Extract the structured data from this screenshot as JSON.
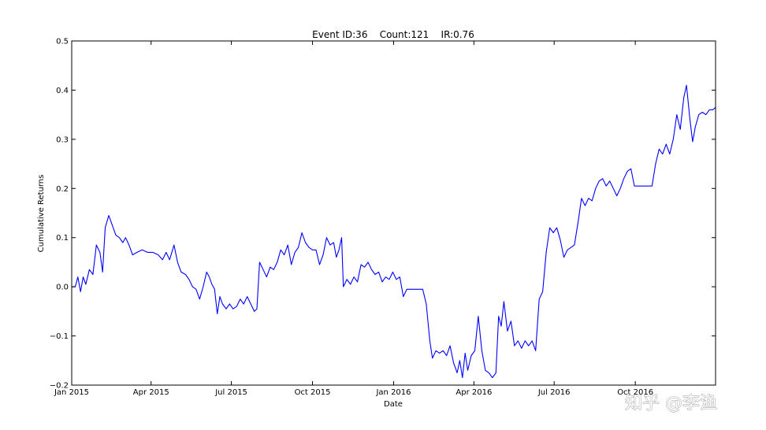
{
  "chart_data": {
    "type": "line",
    "title": "Event ID:36    Count:121    IR:0.76",
    "xlabel": "Date",
    "ylabel": "Cumulative Returns",
    "xlim": [
      "2015-01-01",
      "2016-12-31"
    ],
    "ylim": [
      -0.2,
      0.5
    ],
    "grid": false,
    "x_ticks": [
      {
        "date": "2015-01-01",
        "label": "Jan 2015"
      },
      {
        "date": "2015-04-01",
        "label": "Apr 2015"
      },
      {
        "date": "2015-07-01",
        "label": "Jul 2015"
      },
      {
        "date": "2015-10-01",
        "label": "Oct 2015"
      },
      {
        "date": "2016-01-01",
        "label": "Jan 2016"
      },
      {
        "date": "2016-04-01",
        "label": "Apr 2016"
      },
      {
        "date": "2016-07-01",
        "label": "Jul 2016"
      },
      {
        "date": "2016-10-01",
        "label": "Oct 2016"
      }
    ],
    "y_ticks": [
      {
        "value": -0.2,
        "label": "−0.2"
      },
      {
        "value": -0.1,
        "label": "−0.1"
      },
      {
        "value": 0.0,
        "label": "0.0"
      },
      {
        "value": 0.1,
        "label": "0.1"
      },
      {
        "value": 0.2,
        "label": "0.2"
      },
      {
        "value": 0.3,
        "label": "0.3"
      },
      {
        "value": 0.4,
        "label": "0.4"
      },
      {
        "value": 0.5,
        "label": "0.5"
      }
    ],
    "series": [
      {
        "color": "#0000ff",
        "points": [
          [
            "2015-01-01",
            0.0
          ],
          [
            "2015-01-05",
            0.0
          ],
          [
            "2015-01-08",
            0.02
          ],
          [
            "2015-01-11",
            -0.01
          ],
          [
            "2015-01-14",
            0.02
          ],
          [
            "2015-01-17",
            0.005
          ],
          [
            "2015-01-21",
            0.035
          ],
          [
            "2015-01-25",
            0.025
          ],
          [
            "2015-01-29",
            0.085
          ],
          [
            "2015-02-02",
            0.07
          ],
          [
            "2015-02-05",
            0.03
          ],
          [
            "2015-02-08",
            0.12
          ],
          [
            "2015-02-12",
            0.145
          ],
          [
            "2015-02-16",
            0.125
          ],
          [
            "2015-02-20",
            0.105
          ],
          [
            "2015-02-24",
            0.1
          ],
          [
            "2015-02-28",
            0.09
          ],
          [
            "2015-03-03",
            0.1
          ],
          [
            "2015-03-07",
            0.085
          ],
          [
            "2015-03-11",
            0.065
          ],
          [
            "2015-03-16",
            0.07
          ],
          [
            "2015-03-22",
            0.075
          ],
          [
            "2015-03-28",
            0.07
          ],
          [
            "2015-04-03",
            0.07
          ],
          [
            "2015-04-09",
            0.065
          ],
          [
            "2015-04-14",
            0.055
          ],
          [
            "2015-04-18",
            0.07
          ],
          [
            "2015-04-22",
            0.055
          ],
          [
            "2015-04-27",
            0.085
          ],
          [
            "2015-05-01",
            0.05
          ],
          [
            "2015-05-05",
            0.03
          ],
          [
            "2015-05-10",
            0.025
          ],
          [
            "2015-05-14",
            0.015
          ],
          [
            "2015-05-18",
            0.0
          ],
          [
            "2015-05-22",
            -0.005
          ],
          [
            "2015-05-26",
            -0.025
          ],
          [
            "2015-05-30",
            0.0
          ],
          [
            "2015-06-03",
            0.03
          ],
          [
            "2015-06-06",
            0.02
          ],
          [
            "2015-06-09",
            0.005
          ],
          [
            "2015-06-12",
            -0.005
          ],
          [
            "2015-06-15",
            -0.055
          ],
          [
            "2015-06-18",
            -0.02
          ],
          [
            "2015-06-21",
            -0.035
          ],
          [
            "2015-06-25",
            -0.045
          ],
          [
            "2015-06-29",
            -0.035
          ],
          [
            "2015-07-03",
            -0.045
          ],
          [
            "2015-07-07",
            -0.04
          ],
          [
            "2015-07-11",
            -0.025
          ],
          [
            "2015-07-15",
            -0.035
          ],
          [
            "2015-07-19",
            -0.02
          ],
          [
            "2015-07-23",
            -0.035
          ],
          [
            "2015-07-27",
            -0.05
          ],
          [
            "2015-07-30",
            -0.045
          ],
          [
            "2015-08-02",
            0.05
          ],
          [
            "2015-08-06",
            0.035
          ],
          [
            "2015-08-10",
            0.02
          ],
          [
            "2015-08-14",
            0.04
          ],
          [
            "2015-08-18",
            0.035
          ],
          [
            "2015-08-22",
            0.05
          ],
          [
            "2015-08-26",
            0.075
          ],
          [
            "2015-08-30",
            0.065
          ],
          [
            "2015-09-03",
            0.085
          ],
          [
            "2015-09-07",
            0.045
          ],
          [
            "2015-09-11",
            0.07
          ],
          [
            "2015-09-15",
            0.08
          ],
          [
            "2015-09-19",
            0.11
          ],
          [
            "2015-09-23",
            0.09
          ],
          [
            "2015-09-27",
            0.08
          ],
          [
            "2015-10-01",
            0.075
          ],
          [
            "2015-10-05",
            0.075
          ],
          [
            "2015-10-09",
            0.045
          ],
          [
            "2015-10-13",
            0.065
          ],
          [
            "2015-10-17",
            0.1
          ],
          [
            "2015-10-21",
            0.085
          ],
          [
            "2015-10-25",
            0.09
          ],
          [
            "2015-10-28",
            0.06
          ],
          [
            "2015-10-31",
            0.075
          ],
          [
            "2015-11-03",
            0.1
          ],
          [
            "2015-11-05",
            0.0
          ],
          [
            "2015-11-09",
            0.015
          ],
          [
            "2015-11-13",
            0.005
          ],
          [
            "2015-11-17",
            0.02
          ],
          [
            "2015-11-21",
            0.01
          ],
          [
            "2015-11-25",
            0.045
          ],
          [
            "2015-11-29",
            0.04
          ],
          [
            "2015-12-03",
            0.05
          ],
          [
            "2015-12-07",
            0.035
          ],
          [
            "2015-12-11",
            0.025
          ],
          [
            "2015-12-15",
            0.03
          ],
          [
            "2015-12-19",
            0.01
          ],
          [
            "2015-12-23",
            0.02
          ],
          [
            "2015-12-27",
            0.015
          ],
          [
            "2015-12-31",
            0.03
          ],
          [
            "2016-01-04",
            0.015
          ],
          [
            "2016-01-08",
            0.02
          ],
          [
            "2016-01-12",
            -0.02
          ],
          [
            "2016-01-16",
            -0.005
          ],
          [
            "2016-01-22",
            -0.005
          ],
          [
            "2016-01-28",
            -0.005
          ],
          [
            "2016-02-03",
            -0.005
          ],
          [
            "2016-02-07",
            -0.035
          ],
          [
            "2016-02-11",
            -0.11
          ],
          [
            "2016-02-14",
            -0.145
          ],
          [
            "2016-02-18",
            -0.13
          ],
          [
            "2016-02-22",
            -0.135
          ],
          [
            "2016-02-26",
            -0.13
          ],
          [
            "2016-03-01",
            -0.14
          ],
          [
            "2016-03-05",
            -0.12
          ],
          [
            "2016-03-09",
            -0.155
          ],
          [
            "2016-03-13",
            -0.175
          ],
          [
            "2016-03-16",
            -0.15
          ],
          [
            "2016-03-19",
            -0.185
          ],
          [
            "2016-03-22",
            -0.135
          ],
          [
            "2016-03-25",
            -0.17
          ],
          [
            "2016-03-29",
            -0.14
          ],
          [
            "2016-04-02",
            -0.13
          ],
          [
            "2016-04-06",
            -0.06
          ],
          [
            "2016-04-10",
            -0.13
          ],
          [
            "2016-04-14",
            -0.17
          ],
          [
            "2016-04-18",
            -0.175
          ],
          [
            "2016-04-22",
            -0.185
          ],
          [
            "2016-04-26",
            -0.175
          ],
          [
            "2016-04-29",
            -0.06
          ],
          [
            "2016-05-02",
            -0.08
          ],
          [
            "2016-05-05",
            -0.03
          ],
          [
            "2016-05-09",
            -0.09
          ],
          [
            "2016-05-13",
            -0.07
          ],
          [
            "2016-05-17",
            -0.12
          ],
          [
            "2016-05-21",
            -0.11
          ],
          [
            "2016-05-25",
            -0.125
          ],
          [
            "2016-05-29",
            -0.11
          ],
          [
            "2016-06-02",
            -0.12
          ],
          [
            "2016-06-06",
            -0.11
          ],
          [
            "2016-06-10",
            -0.13
          ],
          [
            "2016-06-14",
            -0.025
          ],
          [
            "2016-06-18",
            -0.01
          ],
          [
            "2016-06-22",
            0.07
          ],
          [
            "2016-06-26",
            0.12
          ],
          [
            "2016-06-30",
            0.11
          ],
          [
            "2016-07-04",
            0.12
          ],
          [
            "2016-07-08",
            0.095
          ],
          [
            "2016-07-12",
            0.06
          ],
          [
            "2016-07-16",
            0.075
          ],
          [
            "2016-07-20",
            0.08
          ],
          [
            "2016-07-24",
            0.085
          ],
          [
            "2016-07-28",
            0.13
          ],
          [
            "2016-08-01",
            0.18
          ],
          [
            "2016-08-05",
            0.165
          ],
          [
            "2016-08-09",
            0.18
          ],
          [
            "2016-08-13",
            0.175
          ],
          [
            "2016-08-17",
            0.2
          ],
          [
            "2016-08-21",
            0.215
          ],
          [
            "2016-08-25",
            0.22
          ],
          [
            "2016-08-29",
            0.205
          ],
          [
            "2016-09-02",
            0.215
          ],
          [
            "2016-09-06",
            0.2
          ],
          [
            "2016-09-10",
            0.185
          ],
          [
            "2016-09-14",
            0.2
          ],
          [
            "2016-09-18",
            0.22
          ],
          [
            "2016-09-22",
            0.235
          ],
          [
            "2016-09-26",
            0.24
          ],
          [
            "2016-09-30",
            0.205
          ],
          [
            "2016-10-04",
            0.205
          ],
          [
            "2016-10-10",
            0.205
          ],
          [
            "2016-10-16",
            0.205
          ],
          [
            "2016-10-20",
            0.205
          ],
          [
            "2016-10-24",
            0.25
          ],
          [
            "2016-10-28",
            0.28
          ],
          [
            "2016-11-01",
            0.27
          ],
          [
            "2016-11-05",
            0.29
          ],
          [
            "2016-11-09",
            0.27
          ],
          [
            "2016-11-13",
            0.3
          ],
          [
            "2016-11-17",
            0.35
          ],
          [
            "2016-11-21",
            0.32
          ],
          [
            "2016-11-25",
            0.385
          ],
          [
            "2016-11-28",
            0.41
          ],
          [
            "2016-12-02",
            0.34
          ],
          [
            "2016-12-05",
            0.295
          ],
          [
            "2016-12-08",
            0.325
          ],
          [
            "2016-12-12",
            0.35
          ],
          [
            "2016-12-16",
            0.355
          ],
          [
            "2016-12-20",
            0.35
          ],
          [
            "2016-12-24",
            0.36
          ],
          [
            "2016-12-28",
            0.36
          ],
          [
            "2016-12-31",
            0.365
          ]
        ]
      }
    ]
  },
  "watermark": {
    "text": "知乎 @李渔"
  }
}
